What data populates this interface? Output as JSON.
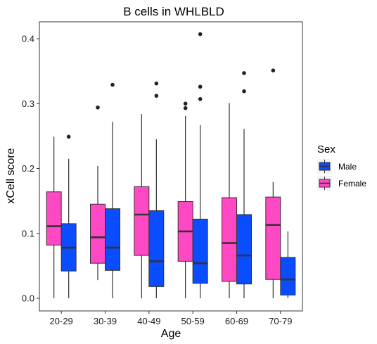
{
  "chart_data": {
    "type": "boxplot",
    "title": "B cells in WHLBLD",
    "xlabel": "Age",
    "ylabel": "xCell score",
    "ylim": [
      -0.01,
      0.43
    ],
    "yticks": [
      0.0,
      0.1,
      0.2,
      0.3,
      0.4
    ],
    "ytick_labels": [
      "0.0",
      "0.1",
      "0.2",
      "0.3",
      "0.4"
    ],
    "categories": [
      "20-29",
      "30-39",
      "40-49",
      "50-59",
      "60-69",
      "70-79"
    ],
    "grid": false,
    "legend": {
      "title": "Sex",
      "placement": "right",
      "entries": [
        {
          "label": "Male",
          "color": "#0A4DFF"
        },
        {
          "label": "Female",
          "color": "#FF48C4"
        }
      ]
    },
    "series": [
      {
        "name": "Female",
        "color": "#FF48C4",
        "boxes": [
          {
            "whislo": 0.0,
            "q1": 0.082,
            "med": 0.111,
            "q3": 0.164,
            "whishi": 0.249,
            "fliers": []
          },
          {
            "whislo": 0.028,
            "q1": 0.054,
            "med": 0.094,
            "q3": 0.145,
            "whishi": 0.204,
            "fliers": [
              0.294
            ]
          },
          {
            "whislo": 0.0,
            "q1": 0.066,
            "med": 0.129,
            "q3": 0.172,
            "whishi": 0.284,
            "fliers": []
          },
          {
            "whislo": 0.0,
            "q1": 0.057,
            "med": 0.103,
            "q3": 0.149,
            "whishi": 0.281,
            "fliers": [
              0.293,
              0.3
            ]
          },
          {
            "whislo": 0.0,
            "q1": 0.026,
            "med": 0.085,
            "q3": 0.155,
            "whishi": 0.301,
            "fliers": []
          },
          {
            "whislo": 0.0,
            "q1": 0.029,
            "med": 0.113,
            "q3": 0.156,
            "whishi": 0.179,
            "fliers": [
              0.351
            ]
          }
        ]
      },
      {
        "name": "Male",
        "color": "#0A4DFF",
        "boxes": [
          {
            "whislo": 0.0,
            "q1": 0.042,
            "med": 0.078,
            "q3": 0.115,
            "whishi": 0.215,
            "fliers": [
              0.249
            ]
          },
          {
            "whislo": 0.0,
            "q1": 0.043,
            "med": 0.078,
            "q3": 0.138,
            "whishi": 0.272,
            "fliers": [
              0.329
            ]
          },
          {
            "whislo": 0.0,
            "q1": 0.018,
            "med": 0.057,
            "q3": 0.135,
            "whishi": 0.245,
            "fliers": [
              0.312,
              0.331
            ]
          },
          {
            "whislo": 0.0,
            "q1": 0.023,
            "med": 0.054,
            "q3": 0.122,
            "whishi": 0.267,
            "fliers": [
              0.307,
              0.326,
              0.407
            ]
          },
          {
            "whislo": 0.0,
            "q1": 0.022,
            "med": 0.066,
            "q3": 0.129,
            "whishi": 0.261,
            "fliers": [
              0.319,
              0.347
            ]
          },
          {
            "whislo": 0.0,
            "q1": 0.005,
            "med": 0.029,
            "q3": 0.063,
            "whishi": 0.103,
            "fliers": []
          }
        ]
      }
    ]
  }
}
